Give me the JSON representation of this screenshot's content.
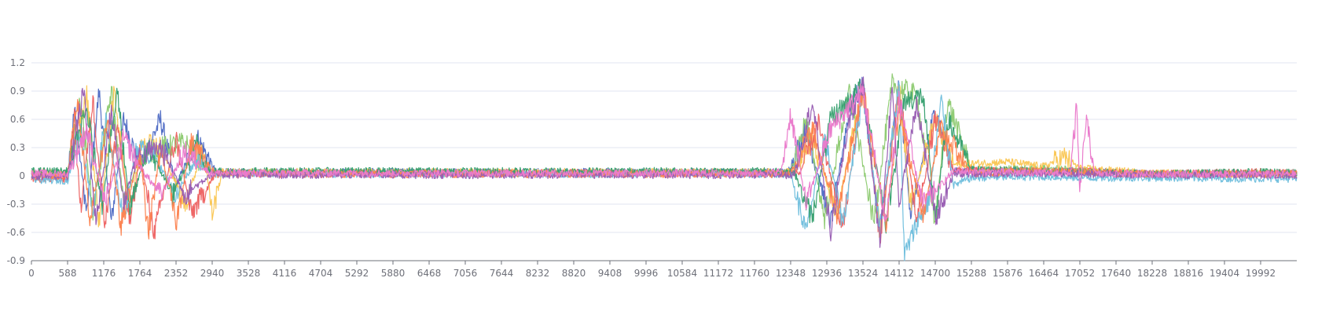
{
  "chart_data": {
    "type": "line",
    "title": "",
    "xlabel": "",
    "ylabel": "",
    "ylim": [
      -0.9,
      1.2
    ],
    "xlim": [
      0,
      20580
    ],
    "y_ticks": [
      -0.9,
      -0.6,
      -0.3,
      0,
      0.3,
      0.6,
      0.9,
      1.2
    ],
    "y_tick_labels": [
      "-0.9",
      "-0.6",
      "-0.3",
      "0",
      "0.3",
      "0.6",
      "0.9",
      "1.2"
    ],
    "x_ticks": [
      0,
      588,
      1176,
      1764,
      2352,
      2940,
      3528,
      4116,
      4704,
      5292,
      5880,
      6468,
      7056,
      7644,
      8232,
      8820,
      9408,
      9996,
      10584,
      11172,
      11760,
      12348,
      12936,
      13524,
      14112,
      14700,
      15288,
      15876,
      16464,
      17052,
      17640,
      18228,
      18816,
      19404,
      19992
    ],
    "x_tick_labels": [
      "0",
      "588",
      "1176",
      "1764",
      "2352",
      "2940",
      "3528",
      "4116",
      "4704",
      "5292",
      "5880",
      "6468",
      "7056",
      "7644",
      "8232",
      "8820",
      "9408",
      "9996",
      "10584",
      "11172",
      "11760",
      "12348",
      "12936",
      "13524",
      "14112",
      "14700",
      "15288",
      "15876",
      "16464",
      "17052",
      "17640",
      "18228",
      "18816",
      "19404",
      "19992"
    ],
    "grid": true,
    "legend": "none",
    "noise_level": 0.04,
    "series_colors": [
      "#5470c6",
      "#91cc75",
      "#fac858",
      "#ee6666",
      "#73c0de",
      "#3ba272",
      "#fc8452",
      "#9a60b4",
      "#ea7ccc"
    ],
    "series": [
      {
        "color": "#5470c6",
        "x": [
          0,
          588,
          700,
          900,
          1100,
          1300,
          1500,
          1764,
          2100,
          2352,
          2700,
          3000,
          12300,
          12600,
          13000,
          13300,
          13524,
          13800,
          14112,
          14300,
          14700,
          15000,
          16464,
          17052,
          18228,
          19992,
          20580
        ],
        "y": [
          0.02,
          0.03,
          0.7,
          -0.4,
          0.9,
          -0.5,
          0.6,
          0.1,
          0.6,
          -0.1,
          0.4,
          0.04,
          0.04,
          0.5,
          -0.5,
          0.7,
          0.97,
          -0.6,
          0.95,
          -0.4,
          0.7,
          0.05,
          0.05,
          0.05,
          0.02,
          0.03,
          0.02
        ]
      },
      {
        "color": "#91cc75",
        "x": [
          0,
          588,
          800,
          1000,
          1300,
          1500,
          1764,
          2100,
          2500,
          2800,
          3000,
          12348,
          12600,
          12900,
          13300,
          13700,
          14000,
          14400,
          14700,
          14900,
          15288,
          16464,
          17052,
          18228,
          19992,
          20580
        ],
        "y": [
          0.02,
          0.02,
          0.8,
          -0.4,
          0.9,
          -0.3,
          0.2,
          0.3,
          0.35,
          0.1,
          0.03,
          0.03,
          0.6,
          -0.45,
          0.9,
          -0.5,
          0.97,
          0.85,
          -0.5,
          0.8,
          0.06,
          0.08,
          0.06,
          0.02,
          0.03,
          0.02
        ]
      },
      {
        "color": "#fac858",
        "x": [
          0,
          588,
          900,
          1100,
          1350,
          1600,
          1800,
          2100,
          2500,
          2800,
          2940,
          3100,
          12400,
          12700,
          13100,
          13524,
          13800,
          14112,
          14300,
          14700,
          15000,
          15876,
          16464,
          16800,
          17052,
          18228,
          19992,
          20580
        ],
        "y": [
          0.04,
          0.03,
          0.85,
          -0.5,
          0.9,
          -0.4,
          0.4,
          0.3,
          -0.3,
          0.3,
          -0.4,
          0.04,
          0.04,
          0.4,
          -0.4,
          0.95,
          -0.6,
          0.95,
          -0.3,
          0.6,
          0.12,
          0.15,
          0.1,
          0.2,
          0.08,
          0.03,
          0.02,
          0.02
        ]
      },
      {
        "color": "#ee6666",
        "x": [
          0,
          588,
          700,
          800,
          1000,
          1200,
          1400,
          1600,
          1764,
          2000,
          2352,
          2600,
          3000,
          12500,
          12800,
          13200,
          13524,
          13800,
          14112,
          14400,
          14700,
          15000,
          16464,
          17052,
          18228,
          19992,
          20580
        ],
        "y": [
          -0.03,
          -0.04,
          0.6,
          -0.35,
          0.8,
          -0.5,
          0.55,
          -0.5,
          0.2,
          -0.6,
          0.4,
          -0.4,
          0.03,
          0.03,
          0.55,
          -0.55,
          0.97,
          -0.65,
          0.9,
          -0.5,
          0.6,
          0.06,
          0.05,
          0.05,
          0.02,
          0.04,
          0.03
        ]
      },
      {
        "color": "#73c0de",
        "x": [
          0,
          588,
          800,
          1000,
          1200,
          1500,
          1700,
          2000,
          2352,
          2700,
          3000,
          12348,
          12600,
          12900,
          13200,
          13524,
          13800,
          14112,
          14200,
          14400,
          14600,
          14800,
          15000,
          15288,
          16464,
          17052,
          18228,
          19992,
          20580
        ],
        "y": [
          -0.04,
          -0.05,
          0.5,
          -0.4,
          0.6,
          -0.45,
          0.3,
          0.2,
          -0.2,
          0.2,
          0.02,
          0.02,
          -0.6,
          0.4,
          -0.5,
          0.9,
          -0.55,
          0.97,
          -0.85,
          -0.5,
          -0.25,
          0.8,
          -0.1,
          -0.02,
          -0.01,
          -0.02,
          -0.02,
          -0.03,
          -0.03
        ]
      },
      {
        "color": "#3ba272",
        "x": [
          0,
          588,
          900,
          1150,
          1400,
          1600,
          1900,
          2300,
          2700,
          2900,
          12400,
          12700,
          13000,
          13524,
          13900,
          14200,
          14500,
          14700,
          14900,
          15288,
          16464,
          17052,
          18228,
          19992,
          20580
        ],
        "y": [
          0.05,
          0.05,
          0.7,
          -0.3,
          0.9,
          -0.35,
          0.3,
          -0.2,
          0.35,
          0.05,
          0.05,
          -0.45,
          0.6,
          0.95,
          -0.5,
          0.8,
          0.85,
          -0.45,
          0.6,
          0.07,
          0.05,
          0.04,
          0.02,
          0.04,
          0.03
        ]
      },
      {
        "color": "#fc8452",
        "x": [
          0,
          588,
          750,
          950,
          1250,
          1450,
          1764,
          1900,
          2100,
          2352,
          2600,
          3000,
          12348,
          12700,
          13100,
          13524,
          13900,
          14112,
          14500,
          14800,
          15288,
          16464,
          17052,
          18228,
          19992,
          20580
        ],
        "y": [
          0.01,
          0.0,
          0.8,
          -0.45,
          0.6,
          -0.55,
          0.25,
          -0.62,
          0.3,
          -0.5,
          0.35,
          0.02,
          0.02,
          0.5,
          -0.4,
          0.9,
          -0.5,
          0.7,
          -0.4,
          0.5,
          0.03,
          0.05,
          0.04,
          0.02,
          0.02,
          0.02
        ]
      },
      {
        "color": "#9a60b4",
        "x": [
          0,
          588,
          850,
          1050,
          1300,
          1500,
          1700,
          2100,
          2500,
          2900,
          12400,
          12700,
          13000,
          13300,
          13524,
          13800,
          14000,
          14112,
          14400,
          14700,
          15000,
          16464,
          17052,
          18228,
          19992,
          20580
        ],
        "y": [
          0.0,
          -0.01,
          0.9,
          -0.5,
          0.7,
          -0.3,
          0.2,
          0.3,
          -0.2,
          0.01,
          0.01,
          0.78,
          -0.6,
          0.6,
          0.97,
          -0.7,
          0.95,
          -0.3,
          0.8,
          -0.45,
          0.02,
          0.03,
          0.02,
          0.01,
          0.01,
          0.01
        ]
      },
      {
        "color": "#ea7ccc",
        "x": [
          0,
          588,
          900,
          1200,
          1500,
          1764,
          2100,
          2500,
          2900,
          12000,
          12200,
          12348,
          12600,
          13000,
          13524,
          13900,
          14112,
          14500,
          15000,
          16464,
          16900,
          17000,
          17052,
          17150,
          17300,
          18228,
          19992,
          20580
        ],
        "y": [
          0.03,
          0.02,
          0.5,
          -0.3,
          0.4,
          0.1,
          -0.2,
          0.25,
          0.03,
          0.03,
          0.05,
          0.67,
          -0.3,
          0.5,
          0.9,
          -0.5,
          0.8,
          -0.3,
          0.05,
          0.03,
          0.03,
          0.72,
          -0.22,
          0.6,
          0.02,
          0.02,
          0.02,
          0.02
        ]
      }
    ]
  }
}
